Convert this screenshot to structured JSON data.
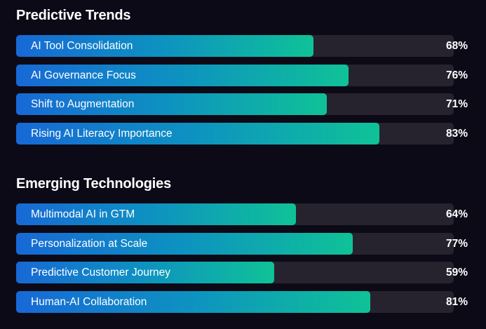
{
  "chart_data": [
    {
      "type": "bar",
      "orientation": "horizontal",
      "title": "Predictive Trends",
      "categories": [
        "AI Tool Consolidation",
        "AI Governance Focus",
        "Shift to Augmentation",
        "Rising AI Literacy Importance"
      ],
      "values": [
        68,
        76,
        71,
        83
      ],
      "value_labels": [
        "68%",
        "76%",
        "71%",
        "83%"
      ],
      "xlim": [
        0,
        100
      ],
      "unit": "%"
    },
    {
      "type": "bar",
      "orientation": "horizontal",
      "title": "Emerging Technologies",
      "categories": [
        "Multimodal AI in GTM",
        "Personalization at Scale",
        "Predictive Customer Journey",
        "Human-AI Collaboration"
      ],
      "values": [
        64,
        77,
        59,
        81
      ],
      "value_labels": [
        "64%",
        "77%",
        "59%",
        "81%"
      ],
      "xlim": [
        0,
        100
      ],
      "unit": "%"
    }
  ],
  "colors": {
    "background": "#0d0a17",
    "track": "#26232f",
    "gradient_start": "#1769d6",
    "gradient_mid": "#0d93c0",
    "gradient_end": "#0fc297",
    "text": "#ffffff"
  }
}
